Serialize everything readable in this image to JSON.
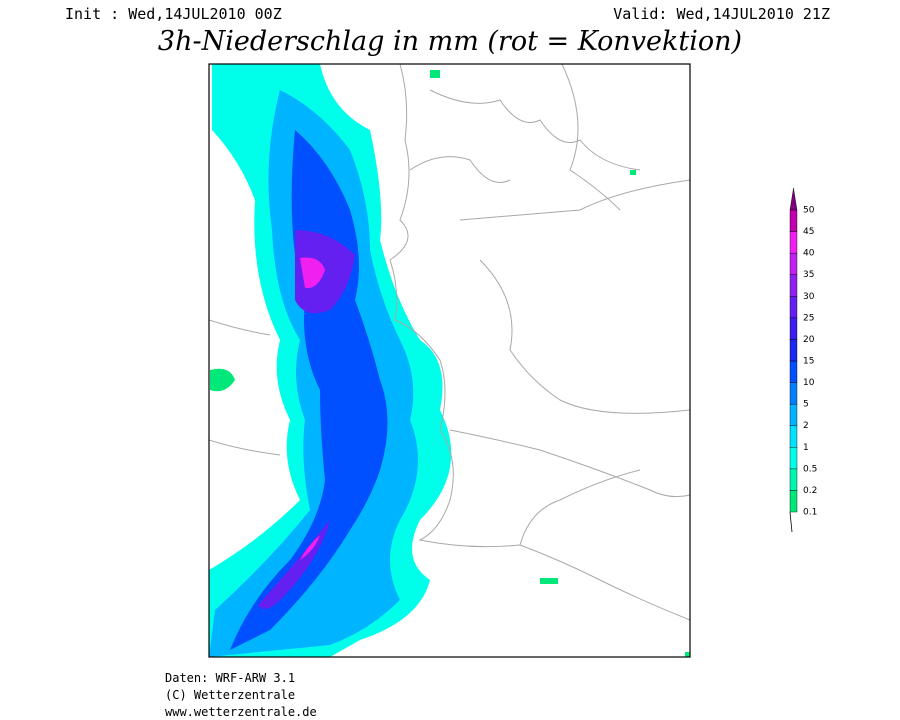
{
  "header": {
    "init": "Init : Wed,14JUL2010 00Z",
    "valid": "Valid: Wed,14JUL2010 21Z",
    "title": "3h-Niederschlag in mm (rot = Konvektion)"
  },
  "legend": {
    "levels": [
      0.1,
      0.2,
      0.5,
      1,
      2,
      5,
      10,
      15,
      20,
      25,
      30,
      35,
      40,
      45,
      50
    ],
    "colors": [
      "#00e87a",
      "#00f5b0",
      "#00ffea",
      "#00e0ff",
      "#00b4ff",
      "#0080ff",
      "#0050ff",
      "#1a28f0",
      "#3c1ef0",
      "#6420f0",
      "#9020f0",
      "#c020f0",
      "#f020f0",
      "#c000b0",
      "#800080"
    ]
  },
  "footer": {
    "data": "Daten: WRF-ARW 3.1",
    "copyright": "(C) Wetterzentrale",
    "url": "www.wetterzentrale.de"
  }
}
